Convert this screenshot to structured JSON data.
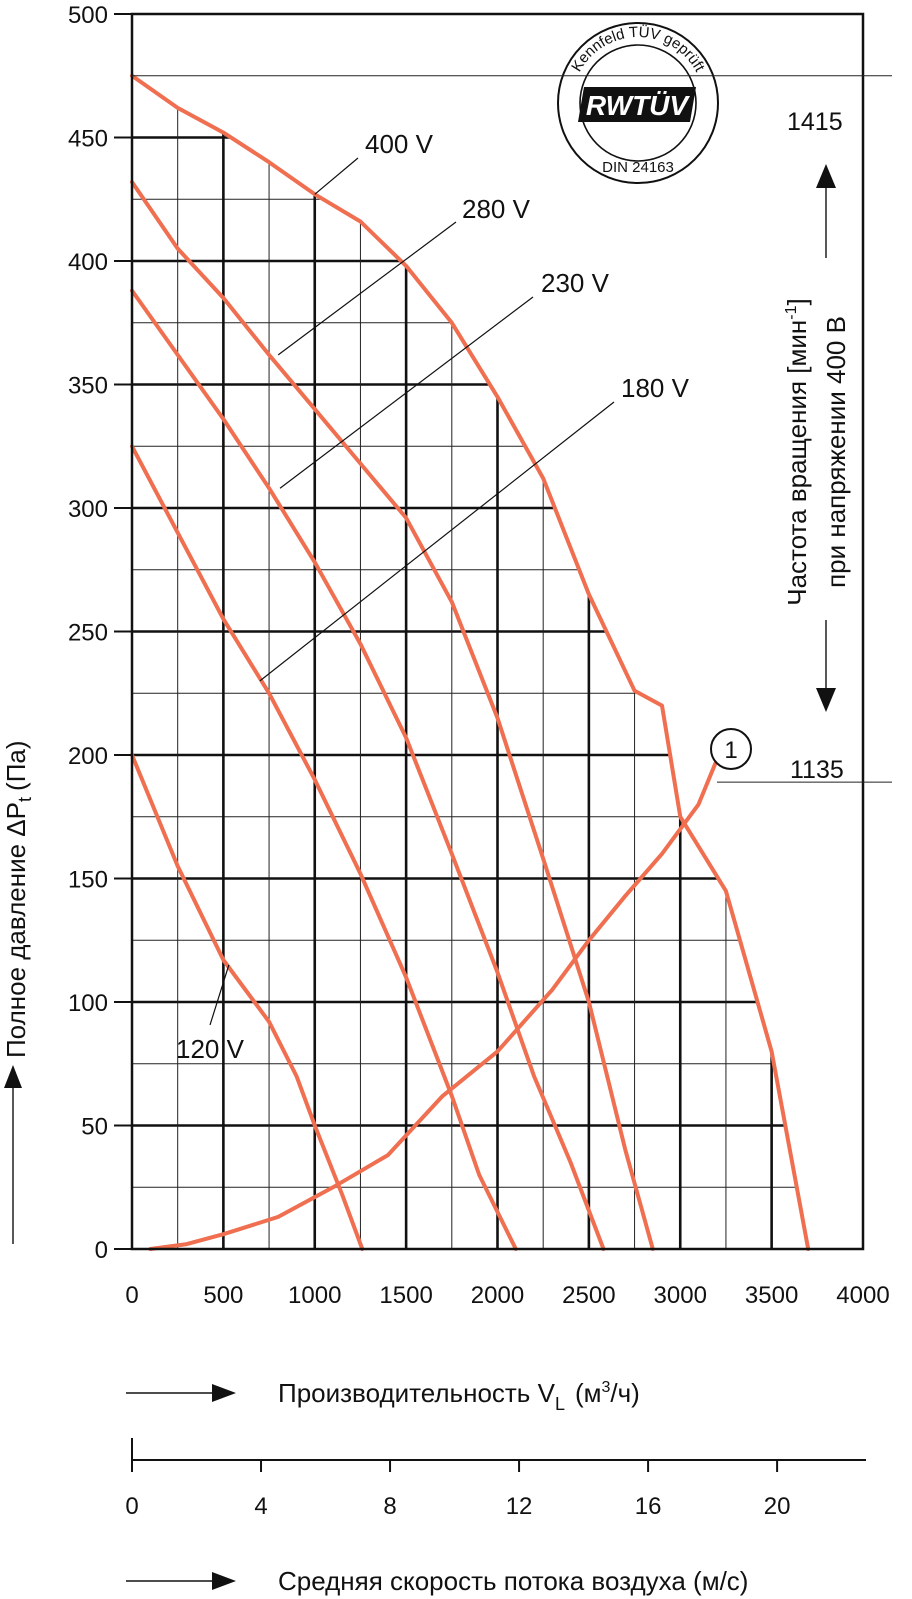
{
  "chart_data": {
    "type": "line",
    "xlabel": "Производительность V",
    "xlabel_sub": "L",
    "xlabel_unit_pre": "(м",
    "xlabel_unit_sup": "3",
    "xlabel_unit_post": "/ч)",
    "ylabel": "Полное давление ΔP",
    "ylabel_sub": "t",
    "ylabel_unit": "(Па)",
    "xlim": [
      0,
      4000
    ],
    "ylim": [
      0,
      500
    ],
    "x_ticks": [
      "0",
      "500",
      "1000",
      "1500",
      "2000",
      "2500",
      "3000",
      "3500",
      "4000"
    ],
    "y_ticks": [
      "0",
      "50",
      "100",
      "150",
      "200",
      "250",
      "300",
      "350",
      "400",
      "450",
      "500"
    ],
    "velocity_axis": {
      "label": "Средняя скорость потока воздуха (м/с)",
      "ticks": [
        "0",
        "4",
        "8",
        "12",
        "16",
        "20"
      ],
      "tick_values": [
        0,
        4,
        8,
        12,
        16,
        20
      ],
      "m3h_per_ms": 176.5
    },
    "rpm_axis": {
      "label_line1_pre": "Частота вращения [мин",
      "label_line1_sup": "-1",
      "label_line1_post": "]",
      "label_line2": "при напряжении 400 В",
      "max_label": "1415",
      "min_label": "1135",
      "max_level": 475,
      "min_level": 189
    },
    "series": [
      {
        "name": "400 V",
        "label": "400 V",
        "x": [
          0,
          250,
          500,
          750,
          1000,
          1250,
          1500,
          1750,
          2000,
          2250,
          2500,
          2750,
          2900,
          3000,
          3250,
          3500,
          3700
        ],
        "y": [
          475,
          462,
          452,
          440,
          427,
          416,
          398,
          375,
          345,
          312,
          265,
          226,
          220,
          175,
          145,
          80,
          0
        ]
      },
      {
        "name": "280 V",
        "label": "280 V",
        "x": [
          0,
          250,
          500,
          750,
          1000,
          1250,
          1500,
          1750,
          2000,
          2250,
          2500,
          2700,
          2850
        ],
        "y": [
          432,
          405,
          385,
          362,
          340,
          318,
          296,
          262,
          215,
          158,
          100,
          40,
          0
        ]
      },
      {
        "name": "230 V",
        "label": "230 V",
        "x": [
          0,
          250,
          500,
          750,
          1000,
          1250,
          1500,
          1750,
          2000,
          2200,
          2400,
          2580
        ],
        "y": [
          388,
          362,
          336,
          308,
          278,
          245,
          207,
          160,
          112,
          70,
          35,
          0
        ]
      },
      {
        "name": "180 V",
        "label": "180 V",
        "x": [
          0,
          250,
          500,
          750,
          1000,
          1250,
          1500,
          1750,
          1900,
          2100
        ],
        "y": [
          325,
          290,
          255,
          225,
          190,
          152,
          110,
          62,
          30,
          0
        ]
      },
      {
        "name": "120 V",
        "label": "120 V",
        "x": [
          0,
          250,
          500,
          750,
          900,
          1000,
          1150,
          1260
        ],
        "y": [
          200,
          155,
          117,
          92,
          70,
          50,
          22,
          0
        ]
      }
    ],
    "system_curve": {
      "marker": "1",
      "x": [
        100,
        300,
        500,
        800,
        1100,
        1400,
        1700,
        2000,
        2300,
        2500,
        2700,
        2900,
        3100,
        3200
      ],
      "y": [
        0,
        2,
        6,
        13,
        25,
        38,
        62,
        80,
        105,
        125,
        143,
        160,
        180,
        198
      ]
    },
    "certification": {
      "top_text": "Kennfeld TÜV geprüft",
      "brand": "RWTÜV",
      "bottom_text": "DIN 24163"
    }
  }
}
